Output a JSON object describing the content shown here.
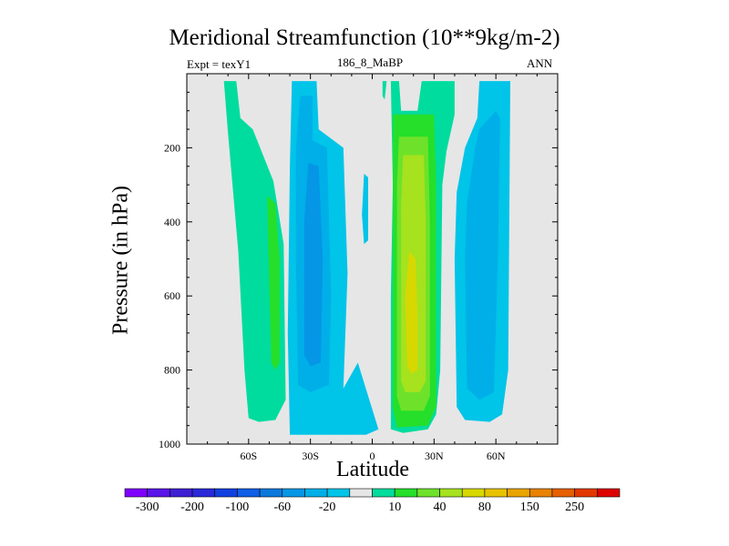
{
  "title": "Meridional Streamfunction (10**9kg/m-2)",
  "left_label": "Expt = texY1",
  "center_label": "186_8_MaBP",
  "right_label": "ANN",
  "colors": {
    "background": "#e6e6e6",
    "levels": [
      "#7f00ff",
      "#5a14e8",
      "#3f1fd4",
      "#2a28d8",
      "#1040e0",
      "#0f5fe6",
      "#0b78dc",
      "#0596e6",
      "#00afe8",
      "#00c4e8",
      "#e6e6e6",
      "#00dc9e",
      "#25df2a",
      "#6ee22a",
      "#a6e21e",
      "#d7d800",
      "#e7c300",
      "#e9a400",
      "#e88200",
      "#e65f00",
      "#e23800",
      "#dd0000"
    ]
  },
  "chart_data": {
    "type": "heatmap",
    "title": "Meridional Streamfunction (10**9kg/m-2)",
    "xlabel": "Latitude",
    "ylabel": "Pressure (in hPa)",
    "xlim": [
      -90,
      90
    ],
    "ylim": [
      1000,
      0
    ],
    "x_ticks": [
      -60,
      -30,
      0,
      30,
      60
    ],
    "x_tick_labels": [
      "60S",
      "30S",
      "0",
      "30N",
      "60N"
    ],
    "y_ticks": [
      200,
      400,
      600,
      800,
      1000
    ],
    "y_tick_labels": [
      "200",
      "400",
      "600",
      "800",
      "1000"
    ],
    "colorbar_labels": [
      "-300",
      "-200",
      "-100",
      "-60",
      "-20",
      "10",
      "40",
      "80",
      "150",
      "250"
    ],
    "contours": [
      {
        "value": 10,
        "level_index": 11,
        "points": [
          [
            -72,
            20
          ],
          [
            -66,
            20
          ],
          [
            -64,
            120
          ],
          [
            -58,
            150
          ],
          [
            -48,
            290
          ],
          [
            -43,
            460
          ],
          [
            -42,
            880
          ],
          [
            -47,
            935
          ],
          [
            -55,
            940
          ],
          [
            -60,
            930
          ],
          [
            -62,
            800
          ],
          [
            -65,
            480
          ],
          [
            -70,
            160
          ]
        ]
      },
      {
        "value": 40,
        "level_index": 12,
        "points": [
          [
            -51,
            330
          ],
          [
            -47,
            350
          ],
          [
            -45,
            500
          ],
          [
            -45,
            780
          ],
          [
            -47,
            800
          ],
          [
            -49,
            780
          ],
          [
            -50,
            560
          ]
        ]
      },
      {
        "value": -10,
        "level_index": 9,
        "points": [
          [
            -39,
            20
          ],
          [
            -27,
            20
          ],
          [
            -26,
            150
          ],
          [
            -14,
            200
          ],
          [
            -12,
            540
          ],
          [
            -14,
            850
          ],
          [
            -7,
            780
          ],
          [
            3,
            960
          ],
          [
            -3,
            975
          ],
          [
            -40,
            975
          ],
          [
            -41,
            700
          ],
          [
            -40,
            250
          ]
        ]
      },
      {
        "value": -20,
        "level_index": 8,
        "points": [
          [
            -35,
            60
          ],
          [
            -29,
            60
          ],
          [
            -29,
            180
          ],
          [
            -22,
            200
          ],
          [
            -20,
            600
          ],
          [
            -21,
            840
          ],
          [
            -30,
            860
          ],
          [
            -36,
            840
          ],
          [
            -37,
            500
          ],
          [
            -37,
            200
          ]
        ]
      },
      {
        "value": -40,
        "level_index": 7,
        "points": [
          [
            -31,
            240
          ],
          [
            -26,
            250
          ],
          [
            -24,
            500
          ],
          [
            -25,
            780
          ],
          [
            -30,
            790
          ],
          [
            -33,
            760
          ],
          [
            -33,
            400
          ]
        ]
      },
      {
        "value": 10,
        "level_index": 11,
        "points": [
          [
            9,
            20
          ],
          [
            13,
            20
          ],
          [
            14,
            100
          ],
          [
            22,
            100
          ],
          [
            24,
            20
          ],
          [
            40,
            20
          ],
          [
            40,
            110
          ],
          [
            36,
            210
          ],
          [
            34,
            300
          ],
          [
            33,
            800
          ],
          [
            31,
            920
          ],
          [
            27,
            960
          ],
          [
            15,
            970
          ],
          [
            9,
            960
          ],
          [
            9,
            600
          ],
          [
            10,
            300
          ]
        ]
      },
      {
        "value": 40,
        "level_index": 12,
        "points": [
          [
            10,
            110
          ],
          [
            30,
            110
          ],
          [
            31,
            300
          ],
          [
            31,
            900
          ],
          [
            27,
            950
          ],
          [
            12,
            955
          ],
          [
            10,
            900
          ],
          [
            10,
            300
          ]
        ]
      },
      {
        "value": 60,
        "level_index": 13,
        "points": [
          [
            13,
            170
          ],
          [
            27,
            170
          ],
          [
            28,
            400
          ],
          [
            28,
            870
          ],
          [
            25,
            910
          ],
          [
            14,
            910
          ],
          [
            12,
            870
          ],
          [
            12,
            300
          ]
        ]
      },
      {
        "value": 80,
        "level_index": 14,
        "points": [
          [
            15,
            220
          ],
          [
            25,
            220
          ],
          [
            26,
            400
          ],
          [
            26,
            830
          ],
          [
            23,
            860
          ],
          [
            16,
            860
          ],
          [
            14,
            830
          ],
          [
            14,
            350
          ]
        ]
      },
      {
        "value": 100,
        "level_index": 15,
        "points": [
          [
            18,
            480
          ],
          [
            21,
            500
          ],
          [
            22,
            650
          ],
          [
            22,
            800
          ],
          [
            19,
            810
          ],
          [
            17,
            790
          ],
          [
            16,
            600
          ]
        ]
      },
      {
        "value": -10,
        "level_index": 9,
        "points": [
          [
            52,
            20
          ],
          [
            67,
            20
          ],
          [
            66,
            800
          ],
          [
            63,
            920
          ],
          [
            57,
            940
          ],
          [
            45,
            935
          ],
          [
            41,
            900
          ],
          [
            40,
            500
          ],
          [
            41,
            320
          ],
          [
            45,
            200
          ],
          [
            51,
            120
          ]
        ]
      },
      {
        "value": -20,
        "level_index": 8,
        "points": [
          [
            52,
            150
          ],
          [
            60,
            100
          ],
          [
            62,
            120
          ],
          [
            61,
            500
          ],
          [
            59,
            860
          ],
          [
            52,
            880
          ],
          [
            46,
            850
          ],
          [
            45,
            500
          ],
          [
            46,
            350
          ],
          [
            50,
            200
          ]
        ]
      },
      {
        "value": -10,
        "level_index": 9,
        "points": [
          [
            -4,
            270
          ],
          [
            -2,
            280
          ],
          [
            -2,
            450
          ],
          [
            -4,
            460
          ],
          [
            -5,
            380
          ]
        ]
      },
      {
        "value": 10,
        "level_index": 11,
        "points": [
          [
            5,
            20
          ],
          [
            7,
            20
          ],
          [
            6,
            70
          ],
          [
            5,
            60
          ]
        ]
      }
    ]
  }
}
